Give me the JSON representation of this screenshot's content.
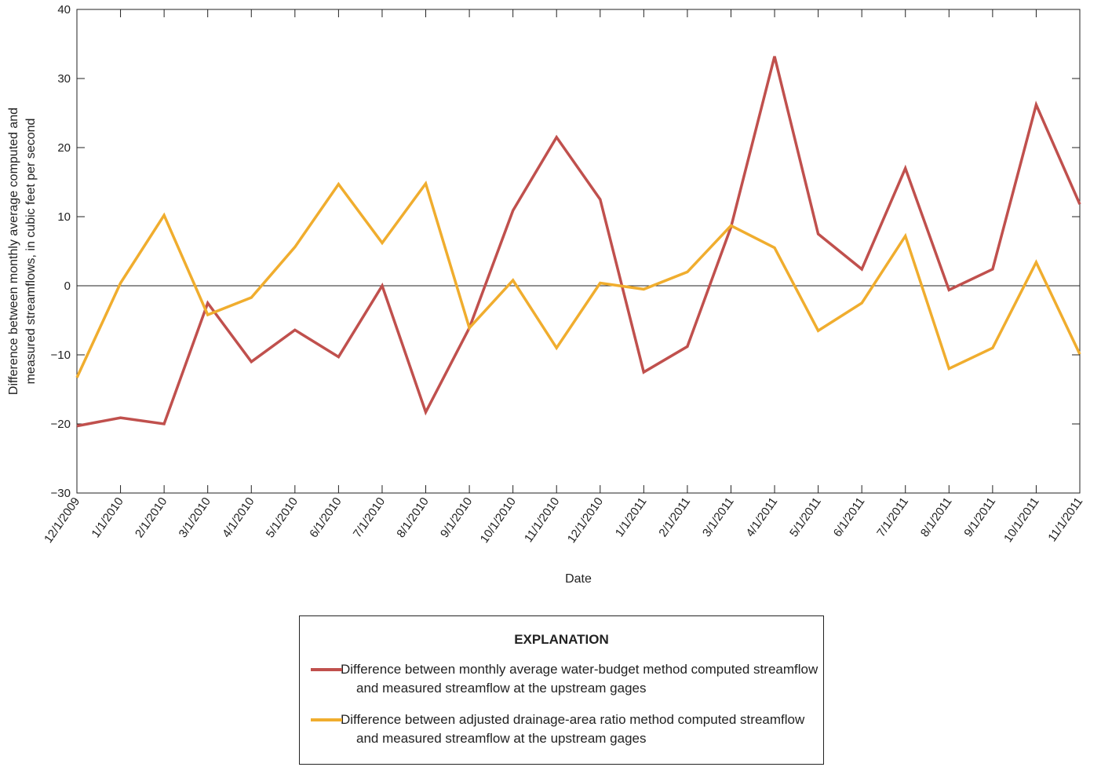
{
  "chart_data": {
    "type": "line",
    "x_label": "Date",
    "y_label": [
      "Difference between monthly average computed and",
      "measured streamflows, in cubic feet per second"
    ],
    "legend_title": "EXPLANATION",
    "categories": [
      "12/1/2009",
      "1/1/2010",
      "2/1/2010",
      "3/1/2010",
      "4/1/2010",
      "5/1/2010",
      "6/1/2010",
      "7/1/2010",
      "8/1/2010",
      "9/1/2010",
      "10/1/2010",
      "11/1/2010",
      "12/1/2010",
      "1/1/2011",
      "2/1/2011",
      "3/1/2011",
      "4/1/2011",
      "5/1/2011",
      "6/1/2011",
      "7/1/2011",
      "8/1/2011",
      "9/1/2011",
      "10/1/2011",
      "11/1/2011"
    ],
    "series": [
      {
        "name": "Difference between monthly average water-budget method computed streamflow and measured streamflow at the upstream gages",
        "color": "#c0504d",
        "values": [
          -20.3,
          -19.1,
          -20,
          -2.5,
          -11,
          -6.4,
          -10.3,
          0,
          -18.3,
          -6.1,
          10.9,
          21.5,
          12.5,
          -12.5,
          -8.8,
          8.5,
          33.2,
          7.5,
          2.4,
          17,
          -0.6,
          2.4,
          26.2,
          11.8
        ]
      },
      {
        "name": "Difference between adjusted drainage-area ratio method computed streamflow and measured streamflow at the upstream gages",
        "color": "#f0ad2e",
        "values": [
          -13.3,
          0.4,
          10.2,
          -4.2,
          -1.7,
          5.6,
          14.7,
          6.2,
          14.8,
          -6.1,
          0.8,
          -9,
          0.4,
          -0.5,
          2,
          8.7,
          5.5,
          -6.5,
          -2.5,
          7.2,
          -12,
          -9,
          3.4,
          -9.9
        ]
      }
    ],
    "ylim": [
      -30,
      40
    ],
    "yticks": [
      {
        "value": -30,
        "label": "−30"
      },
      {
        "value": -20,
        "label": "−20"
      },
      {
        "value": -10,
        "label": "−10"
      },
      0,
      10,
      20,
      30,
      40
    ]
  }
}
